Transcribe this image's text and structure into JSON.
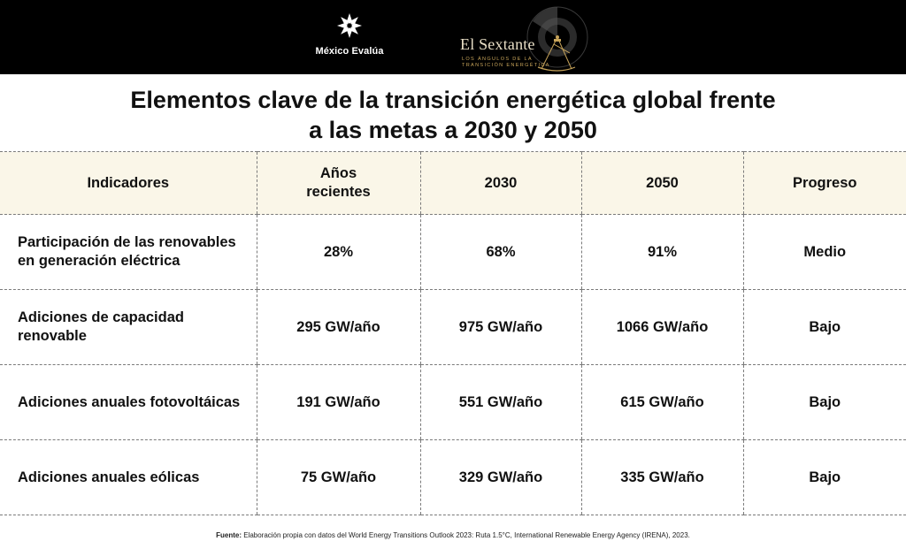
{
  "header": {
    "brand_left": "México Evalúa",
    "brand_right_title": "El Sextante",
    "brand_right_subtitle_1": "Los ángulos de la",
    "brand_right_subtitle_2": "transición energética",
    "icons": [
      "star-logo-icon",
      "sextant-logo-icon"
    ],
    "background_color": "#000000",
    "accent_color": "#c7a45a"
  },
  "title_line1": "Elementos clave de la transición energética global frente",
  "title_line2": "a las metas a 2030 y 2050",
  "table": {
    "header_background": "#faf6e8",
    "headers": [
      "Indicadores",
      "Años\nrecientes",
      "2030",
      "2050",
      "Progreso"
    ],
    "rows": [
      {
        "indicator": "Participación de las renovables en generación eléctrica",
        "recent": "28%",
        "y2030": "68%",
        "y2050": "91%",
        "progress": "Medio"
      },
      {
        "indicator": "Adiciones de capacidad renovable",
        "recent": "295 GW/año",
        "y2030": "975 GW/año",
        "y2050": "1066 GW/año",
        "progress": "Bajo"
      },
      {
        "indicator": "Adiciones anuales fotovoltáicas",
        "recent": "191 GW/año",
        "y2030": "551 GW/año",
        "y2050": "615 GW/año",
        "progress": "Bajo"
      },
      {
        "indicator": "Adiciones anuales eólicas",
        "recent": "75 GW/año",
        "y2030": "329 GW/año",
        "y2050": "335 GW/año",
        "progress": "Bajo"
      }
    ]
  },
  "source": {
    "label": "Fuente:",
    "text": " Elaboración propia con datos del World Energy Transitions Outlook 2023: Ruta 1.5°C, International Renewable Energy Agency (IRENA), 2023."
  }
}
